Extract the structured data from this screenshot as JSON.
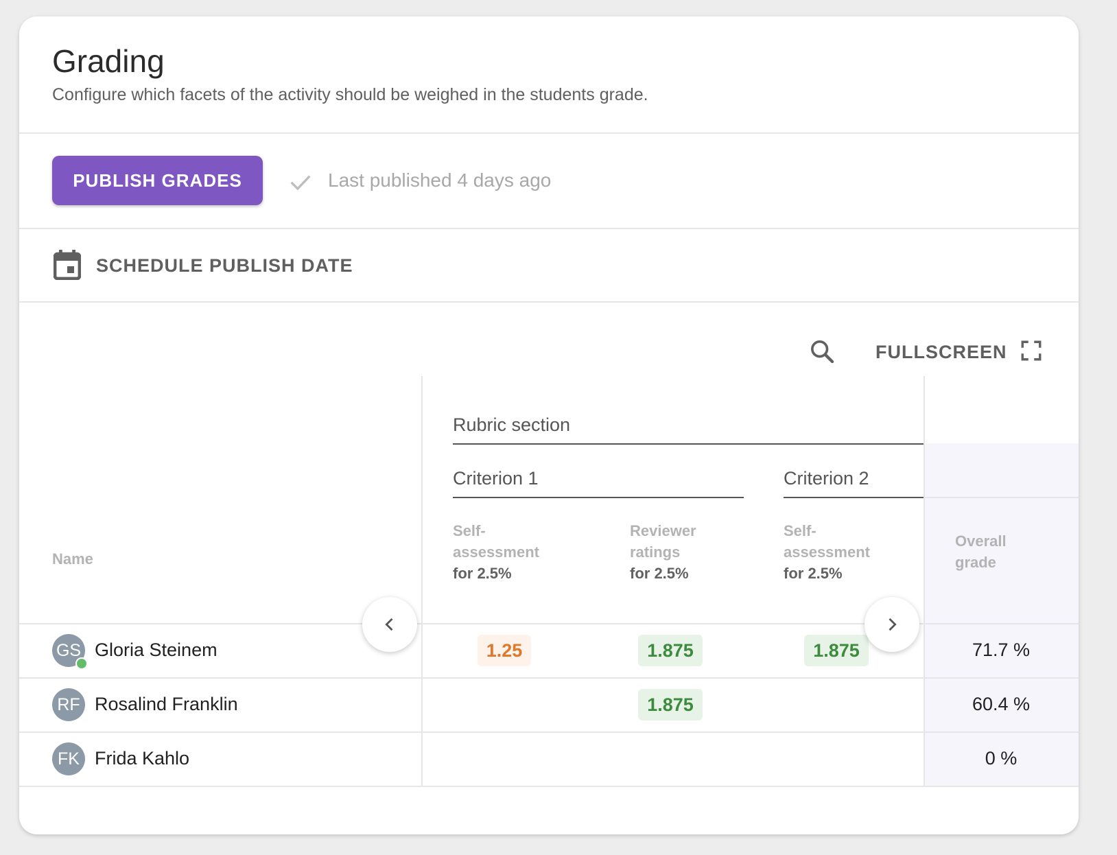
{
  "header": {
    "title": "Grading",
    "subtitle": "Configure which facets of the activity should be weighed in the students grade."
  },
  "publish": {
    "button_label": "PUBLISH GRADES",
    "status_text": "Last published 4 days ago"
  },
  "schedule": {
    "label": "SCHEDULE PUBLISH DATE"
  },
  "toolbar": {
    "fullscreen_label": "FULLSCREEN"
  },
  "table": {
    "name_header": "Name",
    "rubric_section": "Rubric section",
    "criteria": [
      {
        "label": "Criterion 1"
      },
      {
        "label": "Criterion 2"
      }
    ],
    "columns": [
      {
        "label": "Self-assessment",
        "weight": "for 2.5%"
      },
      {
        "label": "Reviewer ratings",
        "weight": "for 2.5%"
      },
      {
        "label": "Self-assessment",
        "weight": "for 2.5%"
      }
    ],
    "overall_header": "Overall grade",
    "rows": [
      {
        "initials": "GS",
        "name": "Gloria Steinem",
        "online": true,
        "c1_self": "1.25",
        "c1_reviewer": "1.875",
        "c2_self": "1.875",
        "overall": "71.7 %"
      },
      {
        "initials": "RF",
        "name": "Rosalind Franklin",
        "online": false,
        "c1_self": "",
        "c1_reviewer": "1.875",
        "c2_self": "",
        "overall": "60.4 %"
      },
      {
        "initials": "FK",
        "name": "Frida Kahlo",
        "online": false,
        "c1_self": "",
        "c1_reviewer": "",
        "c2_self": "",
        "overall": "0 %"
      }
    ]
  },
  "icons": {
    "check": "check-icon",
    "calendar": "calendar-icon",
    "search": "search-icon",
    "fullscreen": "fullscreen-icon",
    "prev": "chevron-left-icon",
    "next": "chevron-right-icon"
  },
  "colors": {
    "primary": "#7e57c2",
    "warning_text": "#e0782a",
    "success_text": "#3d8b3d",
    "online": "#66bb6a"
  }
}
